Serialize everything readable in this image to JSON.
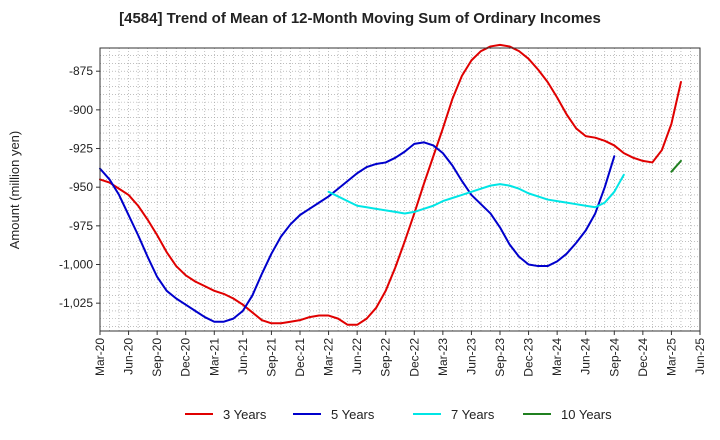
{
  "chart_data": {
    "type": "line",
    "title": "[4584]  Trend of Mean of 12-Month Moving Sum of Ordinary Incomes",
    "xlabel": "",
    "ylabel": "Amount (million yen)",
    "ylim": [
      -1043,
      -860
    ],
    "y_ticks": [
      -875,
      -900,
      -925,
      -950,
      -975,
      -1000,
      -1025
    ],
    "y_tick_labels": [
      "-875",
      "-900",
      "-925",
      "-950",
      "-975",
      "-1,000",
      "-1,025"
    ],
    "x_ticks": [
      "Mar-20",
      "Jun-20",
      "Sep-20",
      "Dec-20",
      "Mar-21",
      "Jun-21",
      "Sep-21",
      "Dec-21",
      "Mar-22",
      "Jun-22",
      "Sep-22",
      "Dec-22",
      "Mar-23",
      "Jun-23",
      "Sep-23",
      "Dec-23",
      "Mar-24",
      "Jun-24",
      "Sep-24",
      "Dec-24",
      "Mar-25",
      "Jun-25"
    ],
    "x_start_month": "Mar-20",
    "grid": true,
    "legend_position": "bottom",
    "series": [
      {
        "name": "3 Years",
        "color": "#e00000",
        "start_index": 0,
        "values": [
          -945,
          -947,
          -951,
          -955,
          -962,
          -971,
          -981,
          -992,
          -1001,
          -1007,
          -1011,
          -1014,
          -1017,
          -1019,
          -1022,
          -1026,
          -1031,
          -1036,
          -1038,
          -1038,
          -1037,
          -1036,
          -1034,
          -1033,
          -1033,
          -1035,
          -1039,
          -1039,
          -1035,
          -1028,
          -1017,
          -1002,
          -985,
          -967,
          -948,
          -930,
          -912,
          -893,
          -878,
          -868,
          -862,
          -859,
          -858,
          -859,
          -862,
          -867,
          -874,
          -882,
          -892,
          -903,
          -912,
          -917,
          -918,
          -920,
          -923,
          -928,
          -931,
          -933,
          -934,
          -926,
          -909,
          -882
        ]
      },
      {
        "name": "5 Years",
        "color": "#0000cc",
        "start_index": 0,
        "values": [
          -938,
          -945,
          -955,
          -968,
          -981,
          -995,
          -1008,
          -1017,
          -1022,
          -1026,
          -1030,
          -1034,
          -1037,
          -1037,
          -1035,
          -1030,
          -1020,
          -1006,
          -993,
          -982,
          -974,
          -968,
          -964,
          -960,
          -956,
          -951,
          -946,
          -941,
          -937,
          -935,
          -934,
          -931,
          -927,
          -922,
          -921,
          -923,
          -928,
          -936,
          -946,
          -955,
          -961,
          -967,
          -976,
          -987,
          -995,
          -1000,
          -1001,
          -1001,
          -998,
          -993,
          -986,
          -978,
          -967,
          -950,
          -930
        ]
      },
      {
        "name": "7 Years",
        "color": "#00e5e5",
        "start_index": 24,
        "values": [
          -953,
          -956,
          -959,
          -962,
          -963,
          -964,
          -965,
          -966,
          -967,
          -966,
          -964,
          -962,
          -959,
          -957,
          -955,
          -953,
          -951,
          -949,
          -948,
          -949,
          -951,
          -954,
          -956,
          -958,
          -959,
          -960,
          -961,
          -962,
          -963,
          -960,
          -953,
          -942
        ]
      },
      {
        "name": "10 Years",
        "color": "#208020",
        "start_index": 60,
        "values": [
          -940,
          -933
        ]
      }
    ]
  }
}
